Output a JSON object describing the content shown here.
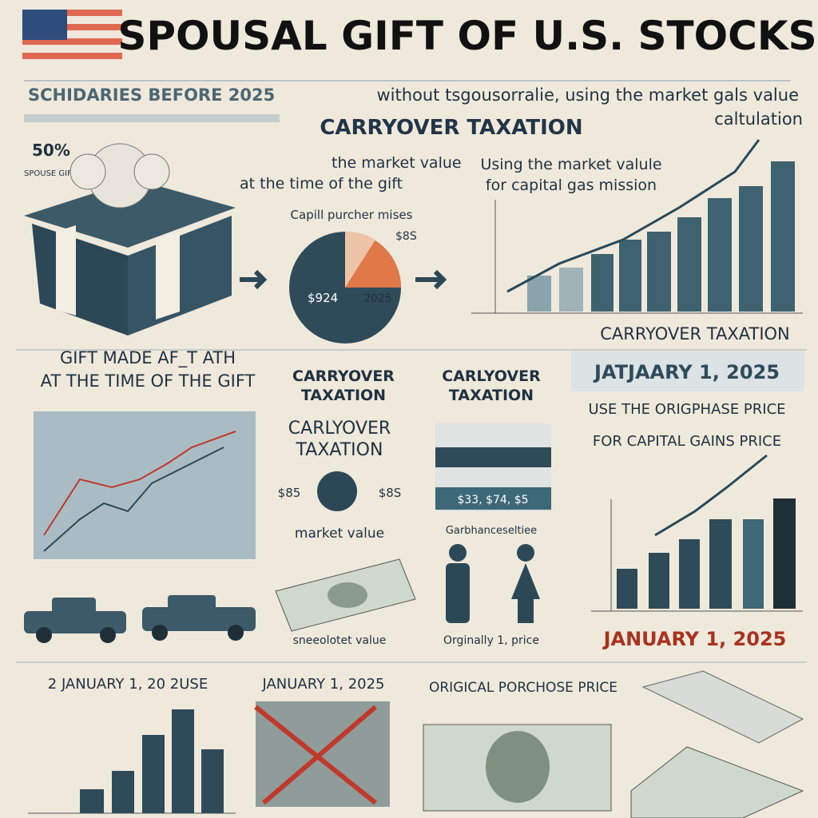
{
  "header": {
    "title": "SPOUSAL GIFT OF U.S. STOCKS",
    "subtitle_left": "SCHIDARIES BEFORE 2025",
    "subtitle_right": "without tsgousorralie, using  the market gals value",
    "subtitle_right_2": "caltulation",
    "section_title": "CARRYOVER TAXATION"
  },
  "top": {
    "badge": "50%",
    "badge_note": "SPOUSE GIFT TAXABLE",
    "gift_text": [
      "the market value",
      "at the time of the gift"
    ],
    "pie_title": "Capill purcher mises",
    "pie_labels": [
      "$924",
      "2025",
      "$8S"
    ],
    "chart_text": [
      "Using the market valule",
      "for capital gas mission"
    ],
    "chart_caption": "CARRYOVER TAXATION"
  },
  "middle": {
    "gift_made": [
      "GIFT MADE AF_T ATH",
      "AT THE TIME OF THE GIFT"
    ],
    "carryover_a": [
      "CARRYOVER",
      "TAXATION"
    ],
    "carryover_b": [
      "CARLYOVER",
      "TAXATION"
    ],
    "carryover_c": [
      "CARLYOVER",
      "TAXATION"
    ],
    "coin_labels": [
      "$85",
      "$8S"
    ],
    "market_value": "market value",
    "panel_value": "$33, $74, $5",
    "people_caption": "Garbhanceseltiee",
    "date_box": "JATJAARY 1, 2025",
    "rule_text": [
      "USE THE ORIGPHASE PRICE",
      "FOR CAPITAL GAINS PRICE"
    ],
    "date_red": "JANUARY 1, 2025",
    "money_caption": "sneeolotet value",
    "people_note": "Orginally 1, price"
  },
  "bottom": {
    "left": "2  JANUARY 1, 20 2USE",
    "middle": "JANUARY 1, 2025",
    "right": "ORIGICAL PORCHOSE PRICE"
  }
}
